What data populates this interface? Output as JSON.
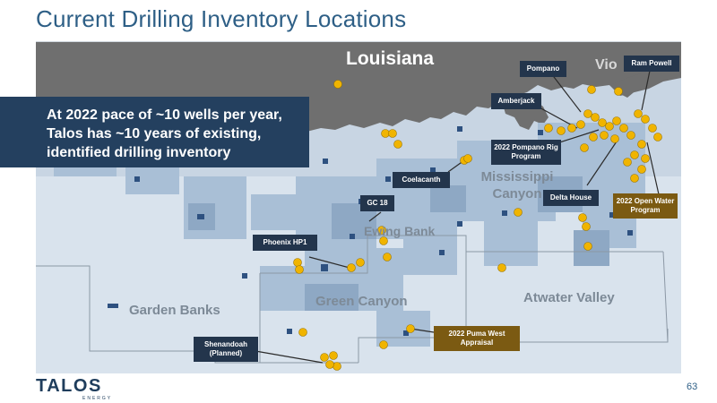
{
  "title": "Current Drilling Inventory Locations",
  "callout": "At 2022 pace of ~10 wells per year, Talos has ~10 years of existing, identified drilling inventory",
  "logo": {
    "name": "TALOS",
    "sub": "ENERGY"
  },
  "page_number": "63",
  "map": {
    "state_label": "Louisiana",
    "partial_label": "Vio",
    "areas": [
      "Mississippi Canyon",
      "Ewing Bank",
      "Green Canyon",
      "Garden Banks",
      "Atwater Valley"
    ],
    "project_labels": {
      "pompano": "Pompano",
      "ram_powell": "Ram Powell",
      "amberjack": "Amberjack",
      "pompano_rig": "2022 Pompano Rig Program",
      "coelacanth": "Coelacanth",
      "gc18": "GC 18",
      "delta_house": "Delta House",
      "open_water": "2022 Open Water Program",
      "phoenix": "Phoenix HP1",
      "puma_west": "2022 Puma West Appraisal",
      "shenandoah": "Shenandoah (Planned)"
    },
    "colors": {
      "land": "#6f6f6f",
      "water": "#c8d5e3",
      "block_light": "#a9bfd6",
      "block_dark": "#2e5180",
      "well": "#f0b400",
      "label_dark": "#23354c",
      "label_gold": "#7b5a12"
    }
  }
}
